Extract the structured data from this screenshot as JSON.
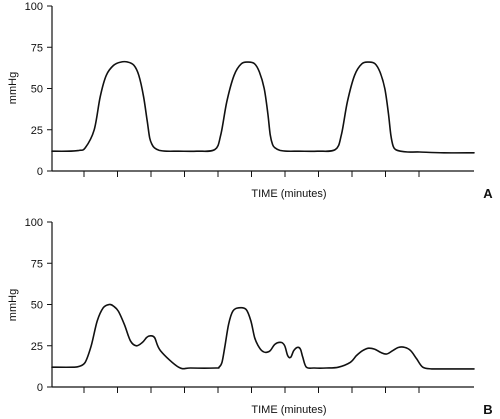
{
  "chart_data": [
    {
      "type": "line",
      "panel": "A",
      "xlabel": "TIME (minutes)",
      "ylabel": "mmHg",
      "ylim": [
        0,
        100
      ],
      "yticks": [
        "0",
        "25",
        "50",
        "75",
        "100"
      ],
      "x_tick_count": 11,
      "grid": false,
      "series": [
        {
          "x": [
            0,
            0.25,
            0.45,
            0.55,
            0.7,
            0.8,
            0.9,
            1.02,
            1.14,
            1.26,
            1.36,
            1.44,
            1.52,
            1.58,
            1.62,
            1.66,
            1.7,
            1.78,
            1.9,
            2.1,
            2.4,
            2.7,
            2.8,
            2.9,
            3.02,
            3.14,
            3.26,
            3.36,
            3.44,
            3.52,
            3.58,
            3.62,
            3.66,
            3.7,
            3.78,
            3.9,
            4.1,
            4.4,
            4.7,
            4.8,
            4.9,
            5.02,
            5.14,
            5.26,
            5.36,
            5.44,
            5.52,
            5.58,
            5.62,
            5.66,
            5.7,
            5.78,
            5.9,
            6.1,
            6.5,
            7.0
          ],
          "y": [
            12,
            12,
            12.5,
            14,
            25,
            45,
            58,
            64,
            66,
            66,
            64,
            58,
            45,
            30,
            20,
            16,
            14,
            12.5,
            12,
            12,
            12,
            13,
            22,
            42,
            58,
            65,
            66,
            65,
            60,
            50,
            35,
            22,
            16,
            14,
            12.5,
            12,
            12,
            12,
            13,
            22,
            42,
            58,
            65,
            66,
            65,
            60,
            50,
            35,
            22,
            15,
            13,
            12,
            11.5,
            11.5,
            11,
            11
          ]
        }
      ]
    },
    {
      "type": "line",
      "panel": "B",
      "xlabel": "TIME (minutes)",
      "ylabel": "mmHg",
      "ylim": [
        0,
        100
      ],
      "yticks": [
        "0",
        "25",
        "50",
        "75",
        "100"
      ],
      "x_tick_count": 11,
      "grid": false,
      "series": [
        {
          "x": [
            0,
            0.35,
            0.45,
            0.55,
            0.65,
            0.75,
            0.85,
            0.95,
            1.02,
            1.1,
            1.2,
            1.3,
            1.4,
            1.5,
            1.57,
            1.62,
            1.7,
            1.8,
            2.1,
            2.3,
            2.72,
            2.77,
            2.82,
            2.87,
            2.93,
            3.0,
            3.1,
            3.22,
            3.3,
            3.36,
            3.42,
            3.48,
            3.55,
            3.62,
            3.7,
            3.8,
            3.86,
            3.91,
            3.96,
            4.01,
            4.07,
            4.12,
            4.16,
            4.22,
            4.35,
            4.55,
            4.75,
            4.95,
            5.05,
            5.15,
            5.25,
            5.35,
            5.45,
            5.55,
            5.65,
            5.75,
            5.85,
            5.95,
            6.05,
            6.15,
            6.3,
            6.5,
            7.0
          ],
          "y": [
            12,
            12,
            12.5,
            15,
            25,
            40,
            48,
            50,
            49,
            46,
            38,
            28,
            25,
            27,
            30,
            31,
            30,
            22,
            12,
            11.5,
            11.5,
            12,
            15,
            25,
            38,
            46,
            48,
            47,
            40,
            30,
            25,
            22,
            21,
            22,
            26,
            27,
            25,
            19,
            18,
            22,
            24,
            23,
            18,
            12,
            11.5,
            11.5,
            12,
            15,
            19,
            22,
            23.5,
            23,
            21,
            20,
            22,
            24,
            24,
            22,
            17,
            12,
            11,
            11,
            11
          ]
        }
      ]
    }
  ]
}
